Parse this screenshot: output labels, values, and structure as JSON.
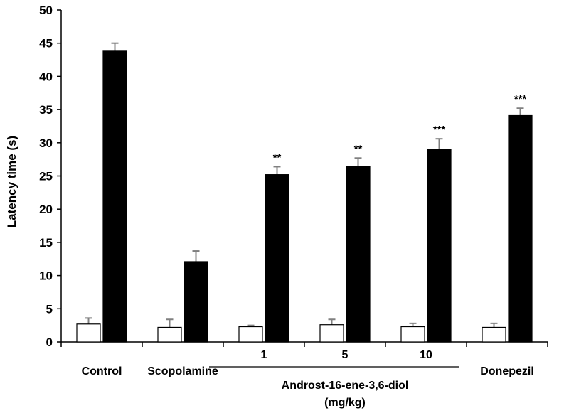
{
  "chart_data": {
    "type": "bar",
    "ylabel": "Latency time (s)",
    "xlabel": "",
    "ylim": [
      0,
      50
    ],
    "yticks": [
      0,
      5,
      10,
      15,
      20,
      25,
      30,
      35,
      40,
      45,
      50
    ],
    "categories": [
      "Control",
      "Scopolamine",
      "1",
      "5",
      "10",
      "Donepezil"
    ],
    "group_label": {
      "line1": "Androst-16-ene-3,6-diol",
      "line2": "(mg/kg)"
    },
    "colors": {
      "series_1": "#ffffff",
      "series_2": "#000000",
      "error": "#808080"
    },
    "series": [
      {
        "values": [
          2.7,
          2.2,
          2.3,
          2.6,
          2.3,
          2.2
        ],
        "errors": [
          0.9,
          1.2,
          0.2,
          0.8,
          0.5,
          0.6
        ]
      },
      {
        "values": [
          43.8,
          12.1,
          25.2,
          26.4,
          29.0,
          34.1
        ],
        "errors": [
          1.2,
          1.6,
          1.2,
          1.3,
          1.6,
          1.1
        ]
      }
    ],
    "annotations": [
      "",
      "",
      "**",
      "**",
      "***",
      "***"
    ]
  }
}
